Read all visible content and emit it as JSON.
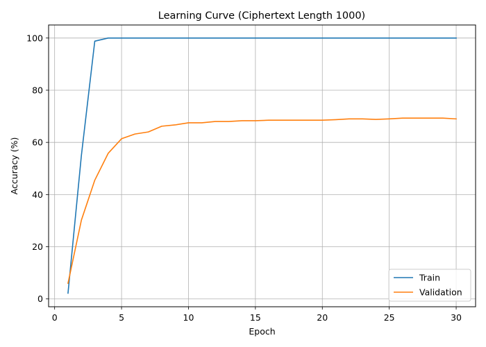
{
  "chart_data": {
    "type": "line",
    "title": "Learning Curve (Ciphertext Length 1000)",
    "xlabel": "Epoch",
    "ylabel": "Accuracy (%)",
    "xlim": [
      -0.45,
      31.45
    ],
    "ylim": [
      -3,
      105
    ],
    "xticks": [
      0,
      5,
      10,
      15,
      20,
      25,
      30
    ],
    "yticks": [
      0,
      20,
      40,
      60,
      80,
      100
    ],
    "grid": true,
    "legend_position": "lower-right",
    "x": [
      1,
      2,
      3,
      4,
      5,
      6,
      7,
      8,
      9,
      10,
      11,
      12,
      13,
      14,
      15,
      16,
      17,
      18,
      19,
      20,
      21,
      22,
      23,
      24,
      25,
      26,
      27,
      28,
      29,
      30
    ],
    "series": [
      {
        "name": "Train",
        "color": "#1f77b4",
        "values": [
          2.2,
          55,
          98.8,
          100,
          100,
          100,
          100,
          100,
          100,
          100,
          100,
          100,
          100,
          100,
          100,
          100,
          100,
          100,
          100,
          100,
          100,
          100,
          100,
          100,
          100,
          100,
          100,
          100,
          100,
          100
        ]
      },
      {
        "name": "Validation",
        "color": "#ff7f0e",
        "values": [
          6,
          30.2,
          45.5,
          55.8,
          61.4,
          63.2,
          64,
          66.2,
          66.7,
          67.5,
          67.5,
          68,
          68,
          68.3,
          68.3,
          68.5,
          68.5,
          68.5,
          68.5,
          68.5,
          68.7,
          69,
          69,
          68.8,
          69,
          69.3,
          69.3,
          69.3,
          69.3,
          69
        ]
      }
    ]
  }
}
